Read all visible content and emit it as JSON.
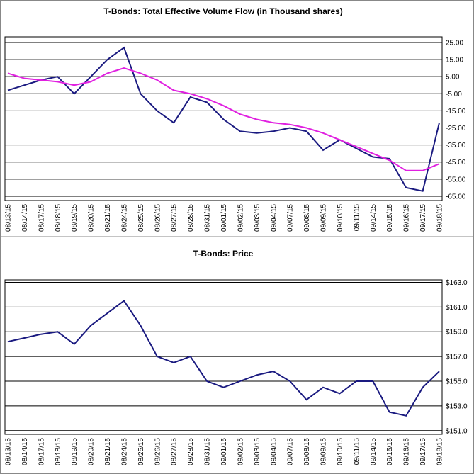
{
  "chart_data": [
    {
      "type": "line",
      "title": "T-Bonds: Total Effective Volume Flow (in Thousand shares)",
      "categories": [
        "08/13/15",
        "08/14/15",
        "08/17/15",
        "08/18/15",
        "08/19/15",
        "08/20/15",
        "08/21/15",
        "08/24/15",
        "08/25/15",
        "08/26/15",
        "08/27/15",
        "08/28/15",
        "08/31/15",
        "09/01/15",
        "09/02/15",
        "09/03/15",
        "09/04/15",
        "09/07/15",
        "09/08/15",
        "09/09/15",
        "09/10/15",
        "09/11/15",
        "09/14/15",
        "09/15/15",
        "09/16/15",
        "09/17/15",
        "09/18/15"
      ],
      "series": [
        {
          "color": "#1a1a80",
          "values": [
            -3,
            0,
            3,
            5,
            -5,
            5,
            15,
            22,
            -5,
            -15,
            -22,
            -7,
            -10,
            -20,
            -27,
            -28,
            -27,
            -25,
            -27,
            -38,
            -32,
            -37,
            -42,
            -43,
            -60,
            -62,
            -22
          ]
        },
        {
          "color": "#e020e0",
          "values": [
            7,
            4,
            3,
            2,
            0,
            2,
            7,
            10,
            7,
            3,
            -3,
            -5,
            -8,
            -12,
            -17,
            -20,
            -22,
            -23,
            -25,
            -28,
            -32,
            -36,
            -40,
            -44,
            -50,
            -50,
            -46
          ]
        }
      ],
      "ylim": [
        -67.5,
        28.3
      ],
      "yticks": [
        {
          "value": 25,
          "label": "25.00"
        },
        {
          "value": 15,
          "label": "15.00"
        },
        {
          "value": 5,
          "label": "5.00"
        },
        {
          "value": -5,
          "label": "-5.00"
        },
        {
          "value": -15,
          "label": "-15.00"
        },
        {
          "value": -25,
          "label": "-25.00"
        },
        {
          "value": -35,
          "label": "-35.00"
        },
        {
          "value": -45,
          "label": "-45.00"
        },
        {
          "value": -55,
          "label": "-55.00"
        },
        {
          "value": -65,
          "label": "-65.00"
        }
      ],
      "grid": true
    },
    {
      "type": "line",
      "title": "T-Bonds: Price",
      "categories": [
        "08/13/15",
        "08/14/15",
        "08/17/15",
        "08/18/15",
        "08/19/15",
        "08/20/15",
        "08/21/15",
        "08/24/15",
        "08/25/15",
        "08/26/15",
        "08/27/15",
        "08/28/15",
        "08/31/15",
        "09/01/15",
        "09/02/15",
        "09/03/15",
        "09/04/15",
        "09/07/15",
        "09/08/15",
        "09/09/15",
        "09/10/15",
        "09/11/15",
        "09/14/15",
        "09/15/15",
        "09/16/15",
        "09/17/15",
        "09/18/15"
      ],
      "series": [
        {
          "color": "#1a1a80",
          "values": [
            158.2,
            158.5,
            158.8,
            159.0,
            158.0,
            159.5,
            160.5,
            161.5,
            159.5,
            157.0,
            156.5,
            157.0,
            155.0,
            154.5,
            155.0,
            155.5,
            155.8,
            155.0,
            153.5,
            154.5,
            154.0,
            155.0,
            155.0,
            152.5,
            152.2,
            154.5,
            155.8
          ]
        }
      ],
      "ylim": [
        150.7,
        163.2
      ],
      "yticks": [
        {
          "value": 163,
          "label": "$163.0"
        },
        {
          "value": 161,
          "label": "$161.0"
        },
        {
          "value": 159,
          "label": "$159.0"
        },
        {
          "value": 157,
          "label": "$157.0"
        },
        {
          "value": 155,
          "label": "$155.0"
        },
        {
          "value": 153,
          "label": "$153.0"
        },
        {
          "value": 151,
          "label": "$151.0"
        }
      ],
      "grid": true
    }
  ]
}
